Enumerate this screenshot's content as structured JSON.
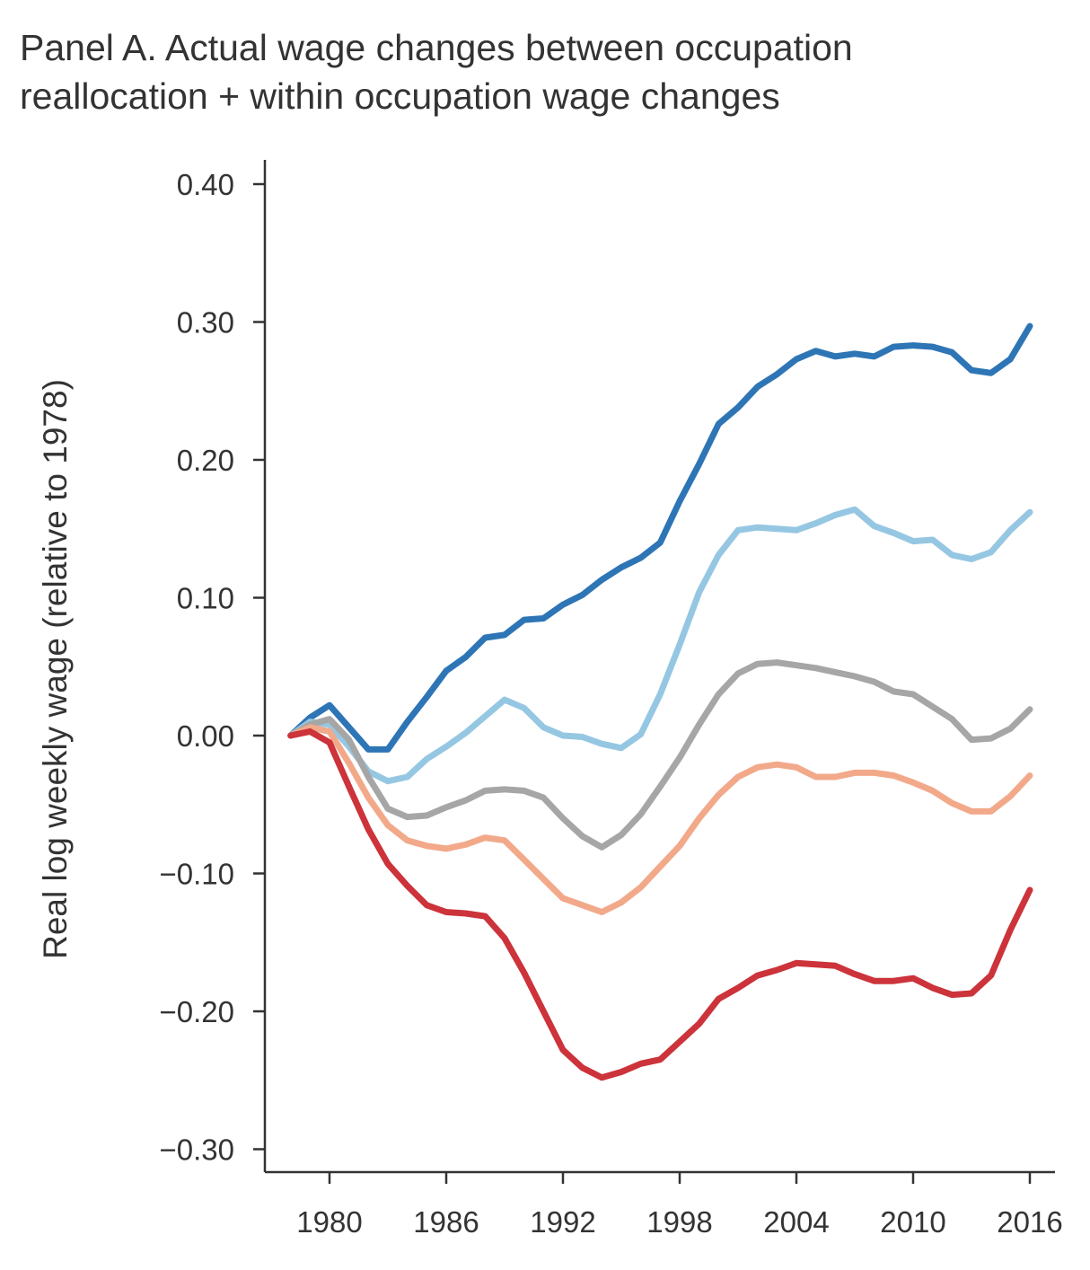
{
  "title_line1": "Panel A. Actual wage changes between occupation",
  "title_line2": "reallocation + within occupation wage changes",
  "chart_data": {
    "type": "line",
    "title": "Panel A. Actual wage changes between occupation reallocation + within occupation wage changes",
    "xlabel": "",
    "ylabel": "Real log weekly wage (relative to 1978)",
    "xlim": [
      1976.8,
      2017.3
    ],
    "ylim": [
      -0.31,
      0.42
    ],
    "x_ticks": [
      1980,
      1986,
      1992,
      1998,
      2004,
      2010,
      2016
    ],
    "x_tick_labels": [
      "1980",
      "1986",
      "1992",
      "1998",
      "2004",
      "2010",
      "2016"
    ],
    "y_ticks": [
      0.4,
      0.3,
      0.2,
      0.1,
      0.0,
      -0.1,
      -0.2,
      -0.3
    ],
    "y_tick_labels": [
      "0.40",
      "0.30",
      "0.20",
      "0.10",
      "0.00",
      "−0.10",
      "−0.20",
      "−0.30"
    ],
    "grid": false,
    "x": [
      1978,
      1979,
      1980,
      1981,
      1982,
      1983,
      1984,
      1985,
      1986,
      1987,
      1988,
      1989,
      1990,
      1991,
      1992,
      1993,
      1994,
      1995,
      1996,
      1997,
      1998,
      1999,
      2000,
      2001,
      2002,
      2003,
      2004,
      2005,
      2006,
      2007,
      2008,
      2009,
      2010,
      2011,
      2012,
      2013,
      2014,
      2015,
      2016
    ],
    "series": [
      {
        "color": "#2E75B6",
        "values": [
          0.0,
          0.013,
          0.022,
          0.006,
          -0.01,
          -0.01,
          0.01,
          0.028,
          0.047,
          0.057,
          0.071,
          0.073,
          0.084,
          0.085,
          0.095,
          0.102,
          0.113,
          0.122,
          0.129,
          0.14,
          0.17,
          0.197,
          0.226,
          0.238,
          0.253,
          0.262,
          0.273,
          0.279,
          0.275,
          0.277,
          0.275,
          0.282,
          0.283,
          0.282,
          0.278,
          0.265,
          0.263,
          0.273,
          0.297
        ]
      },
      {
        "color": "#95C7E3",
        "values": [
          0.0,
          0.01,
          0.008,
          -0.008,
          -0.026,
          -0.033,
          -0.03,
          -0.017,
          -0.008,
          0.002,
          0.014,
          0.026,
          0.02,
          0.006,
          0.0,
          -0.001,
          -0.006,
          -0.009,
          0.001,
          0.03,
          0.066,
          0.104,
          0.131,
          0.149,
          0.151,
          0.15,
          0.149,
          0.154,
          0.16,
          0.164,
          0.152,
          0.147,
          0.141,
          0.142,
          0.131,
          0.128,
          0.133,
          0.149,
          0.162
        ]
      },
      {
        "color": "#A6A6A6",
        "values": [
          0.0,
          0.008,
          0.012,
          -0.003,
          -0.03,
          -0.053,
          -0.059,
          -0.058,
          -0.052,
          -0.047,
          -0.04,
          -0.039,
          -0.04,
          -0.045,
          -0.06,
          -0.073,
          -0.081,
          -0.072,
          -0.057,
          -0.037,
          -0.016,
          0.008,
          0.03,
          0.045,
          0.052,
          0.053,
          0.051,
          0.049,
          0.046,
          0.043,
          0.039,
          0.032,
          0.03,
          0.021,
          0.012,
          -0.003,
          -0.002,
          0.005,
          0.019
        ]
      },
      {
        "color": "#F2A98A",
        "values": [
          0.0,
          0.006,
          0.003,
          -0.02,
          -0.045,
          -0.065,
          -0.076,
          -0.08,
          -0.082,
          -0.079,
          -0.074,
          -0.076,
          -0.09,
          -0.104,
          -0.118,
          -0.123,
          -0.128,
          -0.121,
          -0.11,
          -0.095,
          -0.08,
          -0.06,
          -0.043,
          -0.03,
          -0.023,
          -0.021,
          -0.023,
          -0.03,
          -0.03,
          -0.027,
          -0.027,
          -0.029,
          -0.034,
          -0.04,
          -0.049,
          -0.055,
          -0.055,
          -0.044,
          -0.029
        ]
      },
      {
        "color": "#CC333A",
        "values": [
          0.0,
          0.003,
          -0.005,
          -0.037,
          -0.068,
          -0.093,
          -0.109,
          -0.123,
          -0.128,
          -0.129,
          -0.131,
          -0.147,
          -0.172,
          -0.2,
          -0.228,
          -0.241,
          -0.248,
          -0.244,
          -0.238,
          -0.235,
          -0.222,
          -0.209,
          -0.191,
          -0.183,
          -0.174,
          -0.17,
          -0.165,
          -0.166,
          -0.167,
          -0.173,
          -0.178,
          -0.178,
          -0.176,
          -0.183,
          -0.188,
          -0.187,
          -0.174,
          -0.141,
          -0.112
        ]
      }
    ]
  }
}
